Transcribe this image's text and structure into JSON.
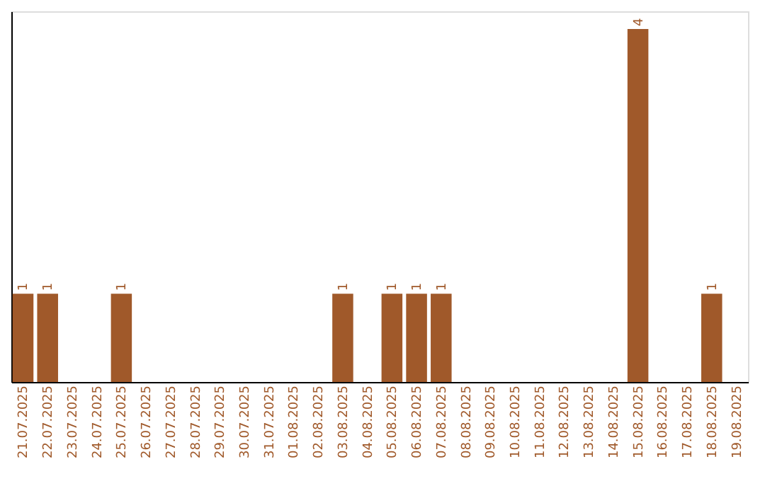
{
  "chart_data": {
    "type": "bar",
    "categories": [
      "21.07.2025",
      "22.07.2025",
      "23.07.2025",
      "24.07.2025",
      "25.07.2025",
      "26.07.2025",
      "27.07.2025",
      "28.07.2025",
      "29.07.2025",
      "30.07.2025",
      "31.07.2025",
      "01.08.2025",
      "02.08.2025",
      "03.08.2025",
      "04.08.2025",
      "05.08.2025",
      "06.08.2025",
      "07.08.2025",
      "08.08.2025",
      "09.08.2025",
      "10.08.2025",
      "11.08.2025",
      "12.08.2025",
      "13.08.2025",
      "14.08.2025",
      "15.08.2025",
      "16.08.2025",
      "17.08.2025",
      "18.08.2025",
      "19.08.2025"
    ],
    "values": [
      1,
      1,
      null,
      null,
      1,
      null,
      null,
      null,
      null,
      null,
      null,
      null,
      null,
      1,
      null,
      1,
      1,
      1,
      null,
      null,
      null,
      null,
      null,
      null,
      null,
      4,
      null,
      null,
      1,
      null
    ],
    "color": "#a0592a",
    "ylim": [
      0,
      4.2
    ],
    "data_labels": true,
    "tick_labels": "x"
  }
}
